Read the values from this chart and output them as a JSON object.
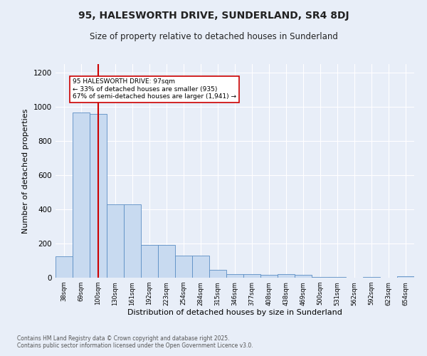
{
  "title": "95, HALESWORTH DRIVE, SUNDERLAND, SR4 8DJ",
  "subtitle": "Size of property relative to detached houses in Sunderland",
  "xlabel": "Distribution of detached houses by size in Sunderland",
  "ylabel": "Number of detached properties",
  "bar_color": "#c8daf0",
  "bar_edge_color": "#5b8ec4",
  "background_color": "#e8eef8",
  "grid_color": "#ffffff",
  "vline_color": "#cc0000",
  "vline_x": 2,
  "annotation_text": "95 HALESWORTH DRIVE: 97sqm\n← 33% of detached houses are smaller (935)\n67% of semi-detached houses are larger (1,941) →",
  "annotation_box_color": "#cc0000",
  "categories": [
    "38sqm",
    "69sqm",
    "100sqm",
    "130sqm",
    "161sqm",
    "192sqm",
    "223sqm",
    "254sqm",
    "284sqm",
    "315sqm",
    "346sqm",
    "377sqm",
    "408sqm",
    "438sqm",
    "469sqm",
    "500sqm",
    "531sqm",
    "562sqm",
    "592sqm",
    "623sqm",
    "654sqm"
  ],
  "values": [
    125,
    965,
    960,
    430,
    430,
    190,
    190,
    130,
    130,
    45,
    20,
    20,
    15,
    20,
    15,
    5,
    5,
    0,
    5,
    0,
    10
  ],
  "ylim": [
    0,
    1250
  ],
  "yticks": [
    0,
    200,
    400,
    600,
    800,
    1000,
    1200
  ],
  "footer": "Contains HM Land Registry data © Crown copyright and database right 2025.\nContains public sector information licensed under the Open Government Licence v3.0.",
  "figsize": [
    6.0,
    5.0
  ],
  "dpi": 100
}
